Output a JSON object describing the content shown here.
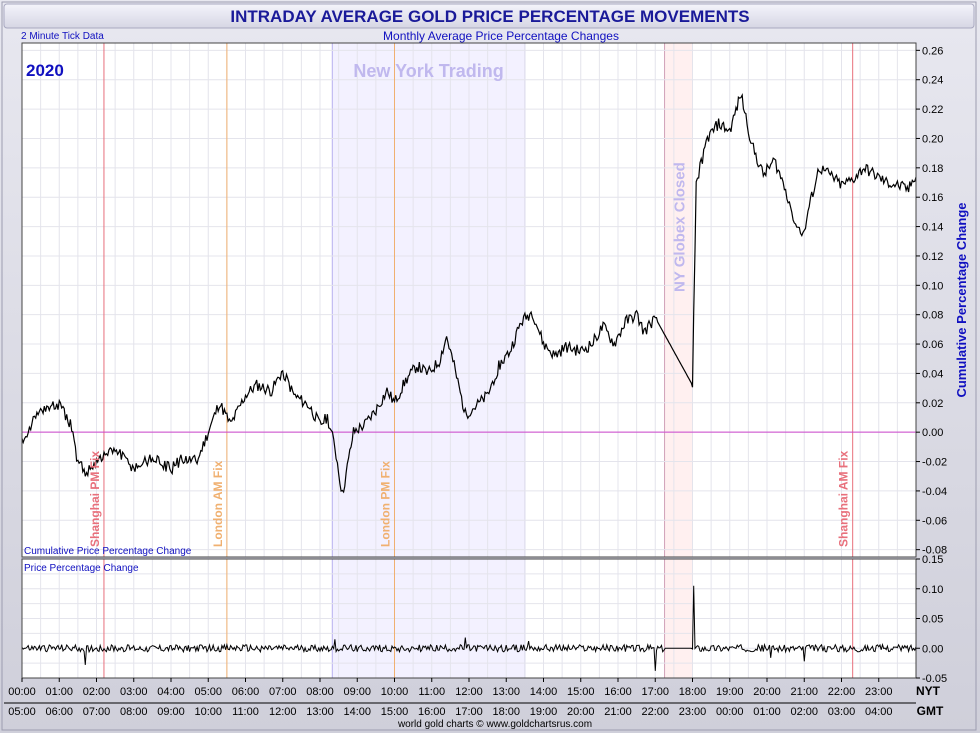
{
  "header": {
    "title": "INTRADAY AVERAGE GOLD PRICE PERCENTAGE MOVEMENTS",
    "subtitle": "Monthly Average Price Percentage Changes",
    "tick_note": "2 Minute Tick Data",
    "year": "2020",
    "footer": "world gold charts © www.goldchartsrus.com"
  },
  "colors": {
    "title": "#1a1a99",
    "text_blue": "#1010c0",
    "frame_fill": "#d9d9e3",
    "shanghai": "#e8707c",
    "london": "#f0b070",
    "ny_band": "#f3f1ff",
    "ny_label": "#c0b8ee",
    "globex_band": "#fff0f0",
    "globex_label": "#c0b8ee",
    "zero_line": "#cc44cc",
    "series": "#000000",
    "grid": "#e4e4ec"
  },
  "chart_data": [
    {
      "type": "line",
      "title": "Cumulative Price Percentage Change",
      "ylabel": "Cumulative Percentage Change",
      "ylim": [
        -0.085,
        0.265
      ],
      "yticks": [
        "0.26",
        "0.24",
        "0.22",
        "0.20",
        "0.18",
        "0.16",
        "0.14",
        "0.12",
        "0.10",
        "0.08",
        "0.06",
        "0.04",
        "0.02",
        "0.00",
        "-0.02",
        "-0.04",
        "-0.06",
        "-0.08"
      ],
      "ytick_values": [
        0.26,
        0.24,
        0.22,
        0.2,
        0.18,
        0.16,
        0.14,
        0.12,
        0.1,
        0.08,
        0.06,
        0.04,
        0.02,
        0.0,
        -0.02,
        -0.04,
        -0.06,
        -0.08
      ],
      "xlim": [
        0,
        24
      ],
      "x_hours_nyt": [
        0,
        0.5,
        1.0,
        1.3,
        1.5,
        1.7,
        2.0,
        2.5,
        3.0,
        3.5,
        4.0,
        4.3,
        4.7,
        5.0,
        5.3,
        5.6,
        6.0,
        6.3,
        6.7,
        7.0,
        7.3,
        7.7,
        8.0,
        8.2,
        8.4,
        8.6,
        8.9,
        9.2,
        9.5,
        9.8,
        10.0,
        10.3,
        10.6,
        10.9,
        11.2,
        11.4,
        11.6,
        11.9,
        12.2,
        12.5,
        12.8,
        13.1,
        13.4,
        13.7,
        14.0,
        14.3,
        14.6,
        15.0,
        15.3,
        15.6,
        15.9,
        16.2,
        16.5,
        16.7,
        17.0,
        18.0,
        18.1,
        18.4,
        18.7,
        19.0,
        19.3,
        19.6,
        19.9,
        20.2,
        20.5,
        20.8,
        21.0,
        21.1,
        21.4,
        21.7,
        22.0,
        22.3,
        22.6,
        22.9,
        23.2,
        23.5,
        23.8,
        24.0
      ],
      "values": [
        -0.005,
        0.015,
        0.018,
        0.005,
        -0.02,
        -0.028,
        -0.02,
        -0.012,
        -0.025,
        -0.018,
        -0.025,
        -0.018,
        -0.02,
        0.0,
        0.02,
        0.005,
        0.025,
        0.032,
        0.028,
        0.042,
        0.025,
        0.018,
        0.005,
        0.01,
        -0.01,
        -0.043,
        0.0,
        0.005,
        0.015,
        0.028,
        0.02,
        0.035,
        0.045,
        0.04,
        0.048,
        0.065,
        0.045,
        0.012,
        0.018,
        0.025,
        0.045,
        0.055,
        0.075,
        0.082,
        0.06,
        0.052,
        0.058,
        0.055,
        0.06,
        0.072,
        0.06,
        0.075,
        0.08,
        0.068,
        0.078,
        0.032,
        0.17,
        0.2,
        0.21,
        0.205,
        0.23,
        0.195,
        0.175,
        0.185,
        0.165,
        0.14,
        0.135,
        0.15,
        0.18,
        0.175,
        0.168,
        0.172,
        0.18,
        0.175,
        0.17,
        0.168,
        0.165,
        0.176
      ],
      "lines": [
        {
          "x": 2.2,
          "label": "Shanghai PM Fix",
          "kind": "shanghai"
        },
        {
          "x": 5.5,
          "label": "London AM Fix",
          "kind": "london"
        },
        {
          "x": 10.0,
          "label": "London PM Fix",
          "kind": "london"
        },
        {
          "x": 22.3,
          "label": "Shanghai AM Fix",
          "kind": "shanghai"
        }
      ],
      "bands": [
        {
          "start": 8.33,
          "end": 13.5,
          "label": "New York Trading",
          "kind": "ny"
        },
        {
          "start": 17.25,
          "end": 18.0,
          "label": "NY Globex Closed",
          "kind": "globex"
        }
      ]
    },
    {
      "type": "line",
      "title": "Price Percentage Change",
      "ylim": [
        -0.05,
        0.15
      ],
      "yticks": [
        "0.15",
        "0.10",
        "0.05",
        "0.00",
        "-0.05"
      ],
      "ytick_values": [
        0.15,
        0.1,
        0.05,
        0.0,
        -0.05
      ],
      "xlim": [
        0,
        24
      ],
      "noise_amplitude": 0.006,
      "spikes": [
        {
          "x": 1.7,
          "value": -0.028
        },
        {
          "x": 8.4,
          "value": 0.015
        },
        {
          "x": 11.9,
          "value": 0.018
        },
        {
          "x": 13.6,
          "value": 0.012
        },
        {
          "x": 17.0,
          "value": -0.038
        },
        {
          "x": 18.05,
          "value": 0.105
        },
        {
          "x": 20.1,
          "value": -0.016
        },
        {
          "x": 21.0,
          "value": -0.022
        }
      ],
      "flat_segment": {
        "start": 17.25,
        "end": 18.0,
        "value": 0.0
      }
    }
  ],
  "x_axis": {
    "nyt_label": "NYT",
    "gmt_label": "GMT",
    "nyt_ticks": [
      "00:00",
      "01:00",
      "02:00",
      "03:00",
      "04:00",
      "05:00",
      "06:00",
      "07:00",
      "08:00",
      "09:00",
      "10:00",
      "11:00",
      "12:00",
      "13:00",
      "14:00",
      "15:00",
      "16:00",
      "17:00",
      "18:00",
      "19:00",
      "20:00",
      "21:00",
      "22:00",
      "23:00"
    ],
    "gmt_ticks": [
      "05:00",
      "06:00",
      "07:00",
      "08:00",
      "09:00",
      "10:00",
      "11:00",
      "12:00",
      "13:00",
      "14:00",
      "15:00",
      "16:00",
      "17:00",
      "18:00",
      "19:00",
      "20:00",
      "21:00",
      "22:00",
      "23:00",
      "00:00",
      "01:00",
      "02:00",
      "03:00",
      "04:00"
    ]
  }
}
